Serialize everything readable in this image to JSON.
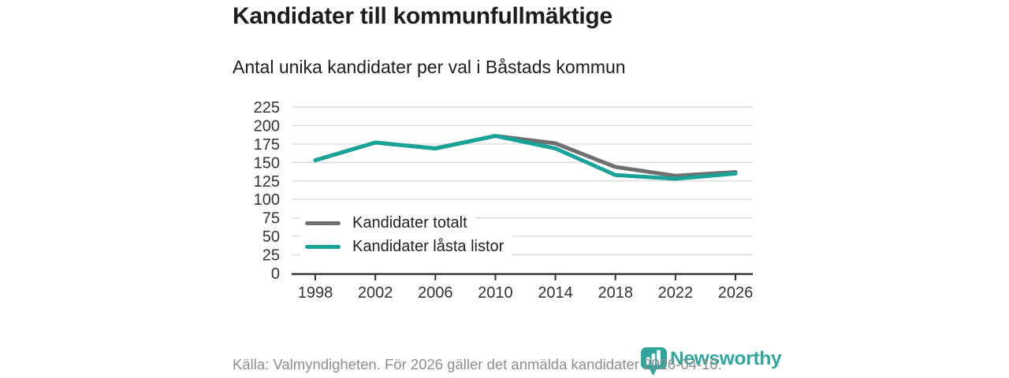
{
  "page": {
    "title": "Kandidater till kommunfullmäktige",
    "subtitle": "Antal unika kandidater per val i Båstads kommun",
    "source_note": "Källa: Valmyndigheten. För 2026 gäller det anmälda kandidater 2026-04-10.",
    "brand": {
      "name": "Newsworthy",
      "icon": "bar-chart-pin-icon",
      "color": "#2ea69e"
    }
  },
  "chart_data": {
    "type": "line",
    "title": "Kandidater till kommunfullmäktige",
    "subtitle": "Antal unika kandidater per val i Båstads kommun",
    "xlabel": "",
    "ylabel": "",
    "x": [
      1998,
      2002,
      2006,
      2010,
      2014,
      2018,
      2022,
      2026
    ],
    "series": [
      {
        "name": "Kandidater totalt",
        "color": "#6f6f6f",
        "values": [
          153,
          177,
          169,
          186,
          176,
          144,
          132,
          137
        ]
      },
      {
        "name": "Kandidater låsta listor",
        "color": "#18a399",
        "values": [
          153,
          177,
          169,
          186,
          169,
          133,
          128,
          135
        ]
      }
    ],
    "ylim": [
      0,
      225
    ],
    "ytick_step": 25,
    "yticks": [
      0,
      25,
      50,
      75,
      100,
      125,
      150,
      175,
      200,
      225
    ],
    "grid": "horizontal",
    "gridline_color": "#dadada",
    "axis_color": "#333333",
    "legend_position": "inside-bottom-left"
  }
}
